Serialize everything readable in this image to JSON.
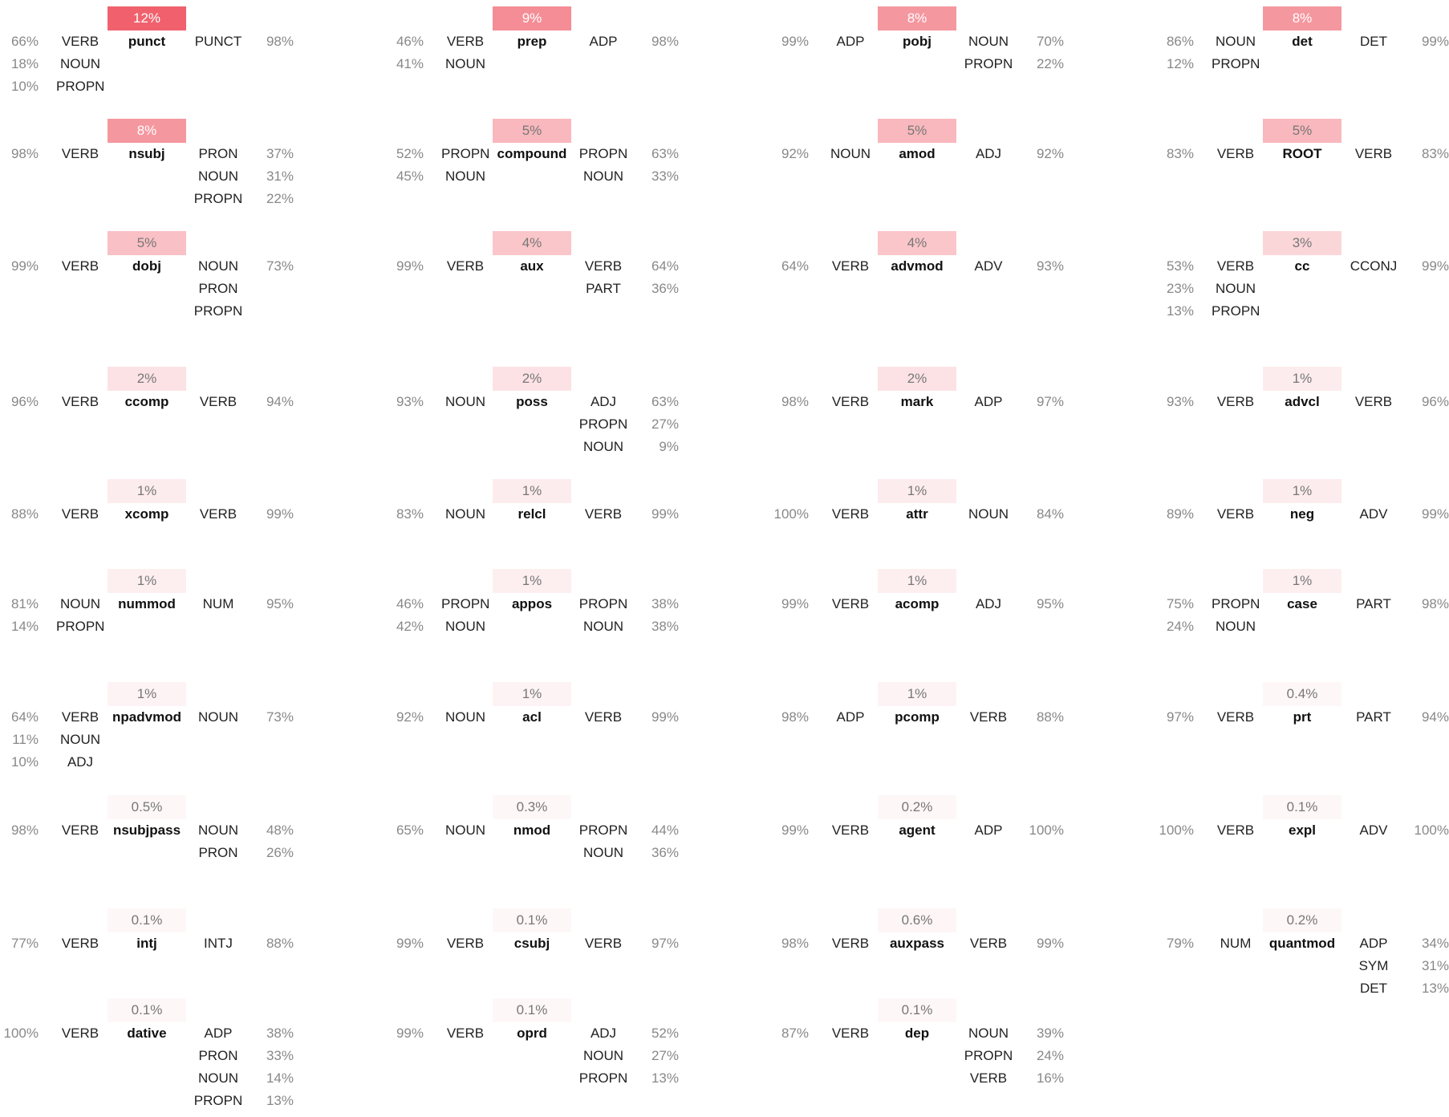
{
  "colors": {
    "text": "#222222",
    "muted": "#888888",
    "accent": "#f0616d",
    "badge_text_light": "#ffffff",
    "badge_text_dark": "#777777"
  },
  "cells": [
    {
      "dep": "punct",
      "freq": "12%",
      "intensity": 1.0,
      "heads": [
        {
          "pct": "66%",
          "pos": "VERB"
        },
        {
          "pct": "18%",
          "pos": "NOUN"
        },
        {
          "pct": "10%",
          "pos": "PROPN"
        }
      ],
      "children": [
        {
          "pos": "PUNCT",
          "pct": "98%"
        }
      ]
    },
    {
      "dep": "prep",
      "freq": "9%",
      "intensity": 0.72,
      "heads": [
        {
          "pct": "46%",
          "pos": "VERB"
        },
        {
          "pct": "41%",
          "pos": "NOUN"
        }
      ],
      "children": [
        {
          "pos": "ADP",
          "pct": "98%"
        }
      ]
    },
    {
      "dep": "pobj",
      "freq": "8%",
      "intensity": 0.66,
      "heads": [
        {
          "pct": "99%",
          "pos": "ADP"
        }
      ],
      "children": [
        {
          "pos": "NOUN",
          "pct": "70%"
        },
        {
          "pos": "PROPN",
          "pct": "22%"
        }
      ]
    },
    {
      "dep": "det",
      "freq": "8%",
      "intensity": 0.66,
      "heads": [
        {
          "pct": "86%",
          "pos": "NOUN"
        },
        {
          "pct": "12%",
          "pos": "PROPN"
        }
      ],
      "children": [
        {
          "pos": "DET",
          "pct": "99%"
        }
      ]
    },
    {
      "dep": "nsubj",
      "freq": "8%",
      "intensity": 0.66,
      "heads": [
        {
          "pct": "98%",
          "pos": "VERB"
        }
      ],
      "children": [
        {
          "pos": "PRON",
          "pct": "37%"
        },
        {
          "pos": "NOUN",
          "pct": "31%"
        },
        {
          "pos": "PROPN",
          "pct": "22%"
        }
      ]
    },
    {
      "dep": "compound",
      "freq": "5%",
      "intensity": 0.45,
      "heads": [
        {
          "pct": "52%",
          "pos": "PROPN"
        },
        {
          "pct": "45%",
          "pos": "NOUN"
        }
      ],
      "children": [
        {
          "pos": "PROPN",
          "pct": "63%"
        },
        {
          "pos": "NOUN",
          "pct": "33%"
        }
      ]
    },
    {
      "dep": "amod",
      "freq": "5%",
      "intensity": 0.45,
      "heads": [
        {
          "pct": "92%",
          "pos": "NOUN"
        }
      ],
      "children": [
        {
          "pos": "ADJ",
          "pct": "92%"
        }
      ]
    },
    {
      "dep": "ROOT",
      "freq": "5%",
      "intensity": 0.45,
      "heads": [
        {
          "pct": "83%",
          "pos": "VERB"
        }
      ],
      "children": [
        {
          "pos": "VERB",
          "pct": "83%"
        }
      ]
    },
    {
      "dep": "dobj",
      "freq": "5%",
      "intensity": 0.4,
      "heads": [
        {
          "pct": "99%",
          "pos": "VERB"
        }
      ],
      "children": [
        {
          "pos": "NOUN",
          "pct": "73%"
        },
        {
          "pos": "PRON",
          "pct": ""
        },
        {
          "pos": "PROPN",
          "pct": ""
        }
      ]
    },
    {
      "dep": "aux",
      "freq": "4%",
      "intensity": 0.36,
      "heads": [
        {
          "pct": "99%",
          "pos": "VERB"
        }
      ],
      "children": [
        {
          "pos": "VERB",
          "pct": "64%"
        },
        {
          "pos": "PART",
          "pct": "36%"
        }
      ]
    },
    {
      "dep": "advmod",
      "freq": "4%",
      "intensity": 0.36,
      "heads": [
        {
          "pct": "64%",
          "pos": "VERB"
        }
      ],
      "children": [
        {
          "pos": "ADV",
          "pct": "93%"
        }
      ]
    },
    {
      "dep": "cc",
      "freq": "3%",
      "intensity": 0.26,
      "heads": [
        {
          "pct": "53%",
          "pos": "VERB"
        },
        {
          "pct": "23%",
          "pos": "NOUN"
        },
        {
          "pct": "13%",
          "pos": "PROPN"
        }
      ],
      "children": [
        {
          "pos": "CCONJ",
          "pct": "99%"
        }
      ]
    },
    {
      "dep": "ccomp",
      "freq": "2%",
      "intensity": 0.18,
      "heads": [
        {
          "pct": "96%",
          "pos": "VERB"
        }
      ],
      "children": [
        {
          "pos": "VERB",
          "pct": "94%"
        }
      ]
    },
    {
      "dep": "poss",
      "freq": "2%",
      "intensity": 0.18,
      "heads": [
        {
          "pct": "93%",
          "pos": "NOUN"
        }
      ],
      "children": [
        {
          "pos": "ADJ",
          "pct": "63%"
        },
        {
          "pos": "PROPN",
          "pct": "27%"
        },
        {
          "pos": "NOUN",
          "pct": "9%"
        }
      ]
    },
    {
      "dep": "mark",
      "freq": "2%",
      "intensity": 0.18,
      "heads": [
        {
          "pct": "98%",
          "pos": "VERB"
        }
      ],
      "children": [
        {
          "pos": "ADP",
          "pct": "97%"
        }
      ]
    },
    {
      "dep": "advcl",
      "freq": "1%",
      "intensity": 0.12,
      "heads": [
        {
          "pct": "93%",
          "pos": "VERB"
        }
      ],
      "children": [
        {
          "pos": "VERB",
          "pct": "96%"
        }
      ]
    },
    {
      "dep": "xcomp",
      "freq": "1%",
      "intensity": 0.12,
      "heads": [
        {
          "pct": "88%",
          "pos": "VERB"
        }
      ],
      "children": [
        {
          "pos": "VERB",
          "pct": "99%"
        }
      ]
    },
    {
      "dep": "relcl",
      "freq": "1%",
      "intensity": 0.12,
      "heads": [
        {
          "pct": "83%",
          "pos": "NOUN"
        }
      ],
      "children": [
        {
          "pos": "VERB",
          "pct": "99%"
        }
      ]
    },
    {
      "dep": "attr",
      "freq": "1%",
      "intensity": 0.12,
      "heads": [
        {
          "pct": "100%",
          "pos": "VERB"
        }
      ],
      "children": [
        {
          "pos": "NOUN",
          "pct": "84%"
        }
      ]
    },
    {
      "dep": "neg",
      "freq": "1%",
      "intensity": 0.12,
      "heads": [
        {
          "pct": "89%",
          "pos": "VERB"
        }
      ],
      "children": [
        {
          "pos": "ADV",
          "pct": "99%"
        }
      ]
    },
    {
      "dep": "nummod",
      "freq": "1%",
      "intensity": 0.1,
      "heads": [
        {
          "pct": "81%",
          "pos": "NOUN"
        },
        {
          "pct": "14%",
          "pos": "PROPN"
        }
      ],
      "children": [
        {
          "pos": "NUM",
          "pct": "95%"
        }
      ]
    },
    {
      "dep": "appos",
      "freq": "1%",
      "intensity": 0.1,
      "heads": [
        {
          "pct": "46%",
          "pos": "PROPN"
        },
        {
          "pct": "42%",
          "pos": "NOUN"
        }
      ],
      "children": [
        {
          "pos": "PROPN",
          "pct": "38%"
        },
        {
          "pos": "NOUN",
          "pct": "38%"
        }
      ]
    },
    {
      "dep": "acomp",
      "freq": "1%",
      "intensity": 0.1,
      "heads": [
        {
          "pct": "99%",
          "pos": "VERB"
        }
      ],
      "children": [
        {
          "pos": "ADJ",
          "pct": "95%"
        }
      ]
    },
    {
      "dep": "case",
      "freq": "1%",
      "intensity": 0.1,
      "heads": [
        {
          "pct": "75%",
          "pos": "PROPN"
        },
        {
          "pct": "24%",
          "pos": "NOUN"
        }
      ],
      "children": [
        {
          "pos": "PART",
          "pct": "98%"
        }
      ]
    },
    {
      "dep": "npadvmod",
      "freq": "1%",
      "intensity": 0.08,
      "heads": [
        {
          "pct": "64%",
          "pos": "VERB"
        },
        {
          "pct": "11%",
          "pos": "NOUN"
        },
        {
          "pct": "10%",
          "pos": "ADJ"
        }
      ],
      "children": [
        {
          "pos": "NOUN",
          "pct": "73%"
        }
      ]
    },
    {
      "dep": "acl",
      "freq": "1%",
      "intensity": 0.08,
      "heads": [
        {
          "pct": "92%",
          "pos": "NOUN"
        }
      ],
      "children": [
        {
          "pos": "VERB",
          "pct": "99%"
        }
      ]
    },
    {
      "dep": "pcomp",
      "freq": "1%",
      "intensity": 0.08,
      "heads": [
        {
          "pct": "98%",
          "pos": "ADP"
        }
      ],
      "children": [
        {
          "pos": "VERB",
          "pct": "88%"
        }
      ]
    },
    {
      "dep": "prt",
      "freq": "0.4%",
      "intensity": 0.05,
      "heads": [
        {
          "pct": "97%",
          "pos": "VERB"
        }
      ],
      "children": [
        {
          "pos": "PART",
          "pct": "94%"
        }
      ]
    },
    {
      "dep": "nsubjpass",
      "freq": "0.5%",
      "intensity": 0.05,
      "heads": [
        {
          "pct": "98%",
          "pos": "VERB"
        }
      ],
      "children": [
        {
          "pos": "NOUN",
          "pct": "48%"
        },
        {
          "pos": "PRON",
          "pct": "26%"
        }
      ]
    },
    {
      "dep": "nmod",
      "freq": "0.3%",
      "intensity": 0.04,
      "heads": [
        {
          "pct": "65%",
          "pos": "NOUN"
        }
      ],
      "children": [
        {
          "pos": "PROPN",
          "pct": "44%"
        },
        {
          "pos": "NOUN",
          "pct": "36%"
        }
      ]
    },
    {
      "dep": "agent",
      "freq": "0.2%",
      "intensity": 0.03,
      "heads": [
        {
          "pct": "99%",
          "pos": "VERB"
        }
      ],
      "children": [
        {
          "pos": "ADP",
          "pct": "100%"
        }
      ]
    },
    {
      "dep": "expl",
      "freq": "0.1%",
      "intensity": 0.02,
      "heads": [
        {
          "pct": "100%",
          "pos": "VERB"
        }
      ],
      "children": [
        {
          "pos": "ADV",
          "pct": "100%"
        }
      ]
    },
    {
      "dep": "intj",
      "freq": "0.1%",
      "intensity": 0.02,
      "heads": [
        {
          "pct": "77%",
          "pos": "VERB"
        }
      ],
      "children": [
        {
          "pos": "INTJ",
          "pct": "88%"
        }
      ]
    },
    {
      "dep": "csubj",
      "freq": "0.1%",
      "intensity": 0.02,
      "heads": [
        {
          "pct": "99%",
          "pos": "VERB"
        }
      ],
      "children": [
        {
          "pos": "VERB",
          "pct": "97%"
        }
      ]
    },
    {
      "dep": "auxpass",
      "freq": "0.6%",
      "intensity": 0.06,
      "heads": [
        {
          "pct": "98%",
          "pos": "VERB"
        }
      ],
      "children": [
        {
          "pos": "VERB",
          "pct": "99%"
        }
      ]
    },
    {
      "dep": "quantmod",
      "freq": "0.2%",
      "intensity": 0.03,
      "heads": [
        {
          "pct": "79%",
          "pos": "NUM"
        }
      ],
      "children": [
        {
          "pos": "ADP",
          "pct": "34%"
        },
        {
          "pos": "SYM",
          "pct": "31%"
        },
        {
          "pos": "DET",
          "pct": "13%"
        }
      ]
    },
    {
      "dep": "dative",
      "freq": "0.1%",
      "intensity": 0.02,
      "heads": [
        {
          "pct": "100%",
          "pos": "VERB"
        }
      ],
      "children": [
        {
          "pos": "ADP",
          "pct": "38%"
        },
        {
          "pos": "PRON",
          "pct": "33%"
        },
        {
          "pos": "NOUN",
          "pct": "14%"
        },
        {
          "pos": "PROPN",
          "pct": "13%"
        }
      ]
    },
    {
      "dep": "oprd",
      "freq": "0.1%",
      "intensity": 0.02,
      "heads": [
        {
          "pct": "99%",
          "pos": "VERB"
        }
      ],
      "children": [
        {
          "pos": "ADJ",
          "pct": "52%"
        },
        {
          "pos": "NOUN",
          "pct": "27%"
        },
        {
          "pos": "PROPN",
          "pct": "13%"
        }
      ]
    },
    {
      "dep": "dep",
      "freq": "0.1%",
      "intensity": 0.02,
      "heads": [
        {
          "pct": "87%",
          "pos": "VERB"
        }
      ],
      "children": [
        {
          "pos": "NOUN",
          "pct": "39%"
        },
        {
          "pos": "PROPN",
          "pct": "24%"
        },
        {
          "pos": "VERB",
          "pct": "16%"
        }
      ]
    }
  ]
}
